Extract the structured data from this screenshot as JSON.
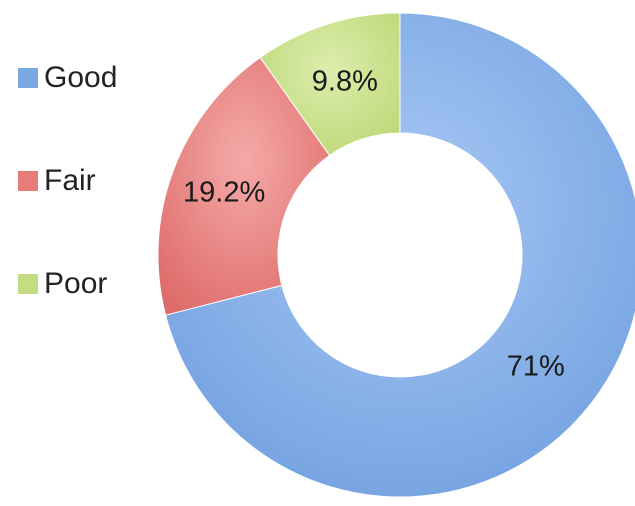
{
  "chart_data": {
    "type": "pie",
    "variant": "donut",
    "title": "",
    "categories": [
      "Good",
      "Fair",
      "Poor"
    ],
    "values": [
      71,
      19.2,
      9.8
    ],
    "value_labels": [
      "71%",
      "19.2%",
      "9.8%"
    ],
    "units": "%",
    "colors": [
      "#7aa6e2",
      "#e77c7b",
      "#c5dd82"
    ],
    "legend": {
      "position": "left",
      "entries": [
        "Good",
        "Fair",
        "Poor"
      ]
    },
    "start_angle": "12 o'clock, clockwise"
  }
}
